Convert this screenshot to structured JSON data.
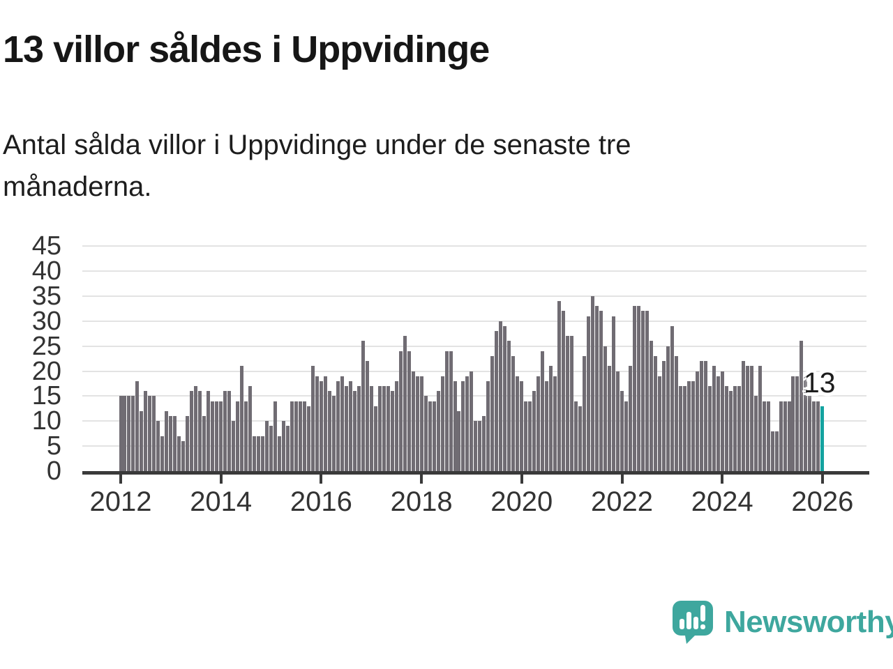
{
  "title": "13 villor såldes i Uppvidinge",
  "subtitle": "Antal sålda villor i Uppvidinge under de senaste tre månaderna.",
  "annotation": {
    "label": "13"
  },
  "branding": {
    "name": "Newsworthy",
    "color": "#3EA79E"
  },
  "colors": {
    "bar": "#706C73",
    "highlight": "#14A3A0",
    "axis": "#3a3a3a",
    "grid": "#e3e3e3",
    "tick_text": "#333333"
  },
  "chart_data": {
    "type": "bar",
    "title": "13 villor såldes i Uppvidinge",
    "x_start": "2012-01",
    "x_end": "2026-01",
    "x_tick_labels": [
      "2012",
      "2014",
      "2016",
      "2018",
      "2020",
      "2022",
      "2024",
      "2026"
    ],
    "y_ticks": [
      0,
      5,
      10,
      15,
      20,
      25,
      30,
      35,
      40,
      45
    ],
    "ylim": [
      0,
      46
    ],
    "grid": "horizontal",
    "legend": "none",
    "highlight_last": {
      "value": 13,
      "label": "13"
    },
    "monthly_values": [
      15,
      15,
      15,
      15,
      18,
      12,
      16,
      15,
      15,
      10,
      7,
      12,
      11,
      11,
      7,
      6,
      11,
      16,
      17,
      16,
      11,
      16,
      14,
      14,
      14,
      16,
      16,
      10,
      14,
      21,
      14,
      17,
      7,
      7,
      7,
      10,
      9,
      14,
      7,
      10,
      9,
      14,
      14,
      14,
      14,
      13,
      21,
      19,
      18,
      19,
      16,
      15,
      18,
      19,
      17,
      18,
      16,
      17,
      26,
      22,
      17,
      13,
      17,
      17,
      17,
      16,
      18,
      24,
      27,
      24,
      20,
      19,
      19,
      15,
      14,
      14,
      16,
      19,
      24,
      24,
      18,
      12,
      18,
      19,
      20,
      10,
      10,
      11,
      18,
      23,
      28,
      30,
      29,
      26,
      23,
      19,
      18,
      14,
      14,
      16,
      19,
      24,
      18,
      21,
      19,
      34,
      32,
      27,
      27,
      14,
      13,
      23,
      31,
      35,
      33,
      32,
      25,
      21,
      31,
      20,
      16,
      14,
      21,
      33,
      33,
      32,
      32,
      26,
      23,
      19,
      22,
      25,
      29,
      23,
      17,
      17,
      18,
      18,
      20,
      22,
      22,
      17,
      21,
      19,
      20,
      17,
      16,
      17,
      17,
      22,
      21,
      21,
      15,
      21,
      14,
      14,
      8,
      8,
      14,
      14,
      14,
      19,
      19,
      26,
      19,
      15,
      14,
      14,
      13
    ]
  }
}
